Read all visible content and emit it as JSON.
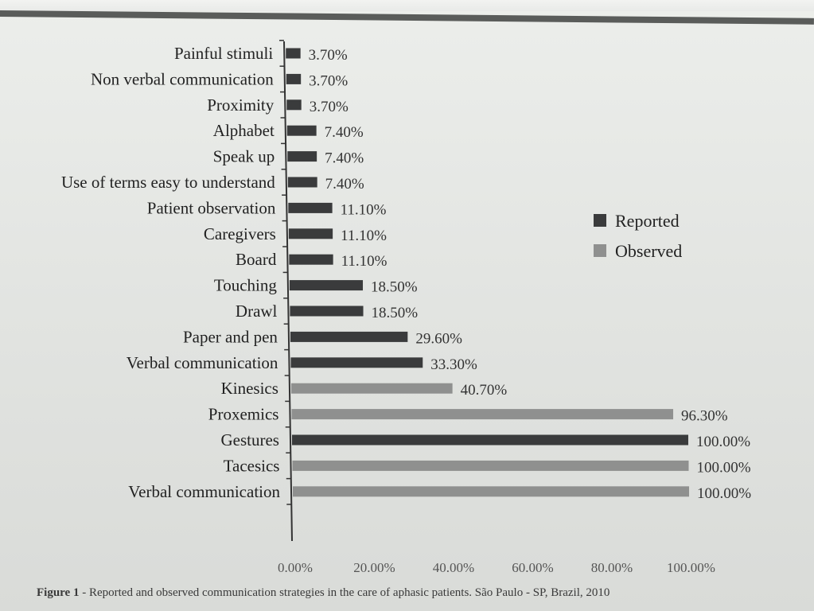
{
  "chart_data": {
    "type": "bar",
    "orientation": "horizontal",
    "categories": [
      "Painful stimuli",
      "Non verbal communication",
      "Proximity",
      "Alphabet",
      "Speak up",
      "Use of terms easy to understand",
      "Patient observation",
      "Caregivers",
      "Board",
      "Touching",
      "Drawl",
      "Paper and pen",
      "Verbal communication",
      "Kinesics",
      "Proxemics",
      "Gestures",
      "Tacesics",
      "Verbal communication"
    ],
    "values": [
      3.7,
      3.7,
      3.7,
      7.4,
      7.4,
      7.4,
      11.1,
      11.1,
      11.1,
      18.5,
      18.5,
      29.6,
      33.3,
      40.7,
      96.3,
      100.0,
      100.0,
      100.0
    ],
    "value_labels": [
      "3.70%",
      "3.70%",
      "3.70%",
      "7.40%",
      "7.40%",
      "7.40%",
      "11.10%",
      "11.10%",
      "11.10%",
      "18.50%",
      "18.50%",
      "29.60%",
      "33.30%",
      "40.70%",
      "96.30%",
      "100.00%",
      "100.00%",
      "100.00%"
    ],
    "series_of_bar": [
      "Reported",
      "Reported",
      "Reported",
      "Reported",
      "Reported",
      "Reported",
      "Reported",
      "Reported",
      "Reported",
      "Reported",
      "Reported",
      "Reported",
      "Reported",
      "Observed",
      "Observed",
      "Reported",
      "Observed",
      "Observed"
    ],
    "legend": [
      {
        "name": "Reported",
        "color": "#3a3b3c"
      },
      {
        "name": "Observed",
        "color": "#8f908f"
      }
    ],
    "legend_position": "right",
    "xlim": [
      0,
      100
    ],
    "x_ticks": [
      "0.00%",
      "20.00%",
      "40.00%",
      "60.00%",
      "80.00%",
      "100.00%"
    ],
    "grid": false
  },
  "caption": {
    "label": "Figure 1",
    "text": " - Reported and observed communication strategies in the care of aphasic patients. São Paulo - SP, Brazil, 2010"
  }
}
